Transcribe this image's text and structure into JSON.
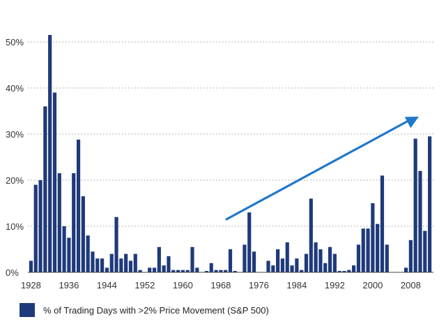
{
  "chart_data": {
    "type": "bar",
    "title": "",
    "xlabel": "",
    "ylabel": "",
    "ylim": [
      0,
      50
    ],
    "yticks": [
      "0%",
      "10%",
      "20%",
      "30%",
      "40%",
      "50%"
    ],
    "xtick_labels": [
      "1928",
      "1936",
      "1944",
      "1952",
      "1960",
      "1968",
      "1976",
      "1984",
      "1992",
      "2000",
      "2008"
    ],
    "grid": "horizontal dotted",
    "legend_position": "bottom-left",
    "bar_color": "#1f3a7a",
    "arrow_color": "#1f78c8",
    "annotation": "upward trend arrow from ~1969 to ~2011",
    "series": [
      {
        "name": "% of Trading Days with >2% Price Movement (S&P 500)",
        "x": [
          1928,
          1929,
          1930,
          1931,
          1932,
          1933,
          1934,
          1935,
          1936,
          1937,
          1938,
          1939,
          1940,
          1941,
          1942,
          1943,
          1944,
          1945,
          1946,
          1947,
          1948,
          1949,
          1950,
          1951,
          1952,
          1953,
          1954,
          1955,
          1956,
          1957,
          1958,
          1959,
          1960,
          1961,
          1962,
          1963,
          1964,
          1965,
          1966,
          1967,
          1968,
          1969,
          1970,
          1971,
          1972,
          1973,
          1974,
          1975,
          1976,
          1977,
          1978,
          1979,
          1980,
          1981,
          1982,
          1983,
          1984,
          1985,
          1986,
          1987,
          1988,
          1989,
          1990,
          1991,
          1992,
          1993,
          1994,
          1995,
          1996,
          1997,
          1998,
          1999,
          2000,
          2001,
          2002,
          2003,
          2004,
          2005,
          2006,
          2007,
          2008,
          2009,
          2010,
          2011,
          2012
        ],
        "values": [
          2.5,
          19,
          20,
          36,
          51.5,
          39,
          21.5,
          10,
          7.5,
          21.5,
          28.8,
          16.5,
          8,
          4.5,
          3,
          3,
          1,
          4,
          12,
          3,
          4,
          2.5,
          4,
          0.5,
          0,
          1,
          1,
          5.5,
          1.5,
          3.5,
          0.5,
          0.5,
          0.5,
          0.5,
          5.5,
          1,
          0,
          0.3,
          2,
          0.5,
          0.5,
          0.5,
          5,
          0.3,
          0,
          6,
          13,
          4.5,
          0,
          0,
          2.5,
          1.5,
          5,
          3,
          6.5,
          1.5,
          3,
          0.5,
          4,
          16,
          6.5,
          5,
          2,
          5.5,
          4,
          0.3,
          0.3,
          0.5,
          1.5,
          6,
          9.5,
          9.5,
          15,
          10.5,
          21,
          6,
          0,
          0,
          0,
          1,
          7,
          29,
          22,
          9,
          29.5
        ]
      }
    ]
  }
}
